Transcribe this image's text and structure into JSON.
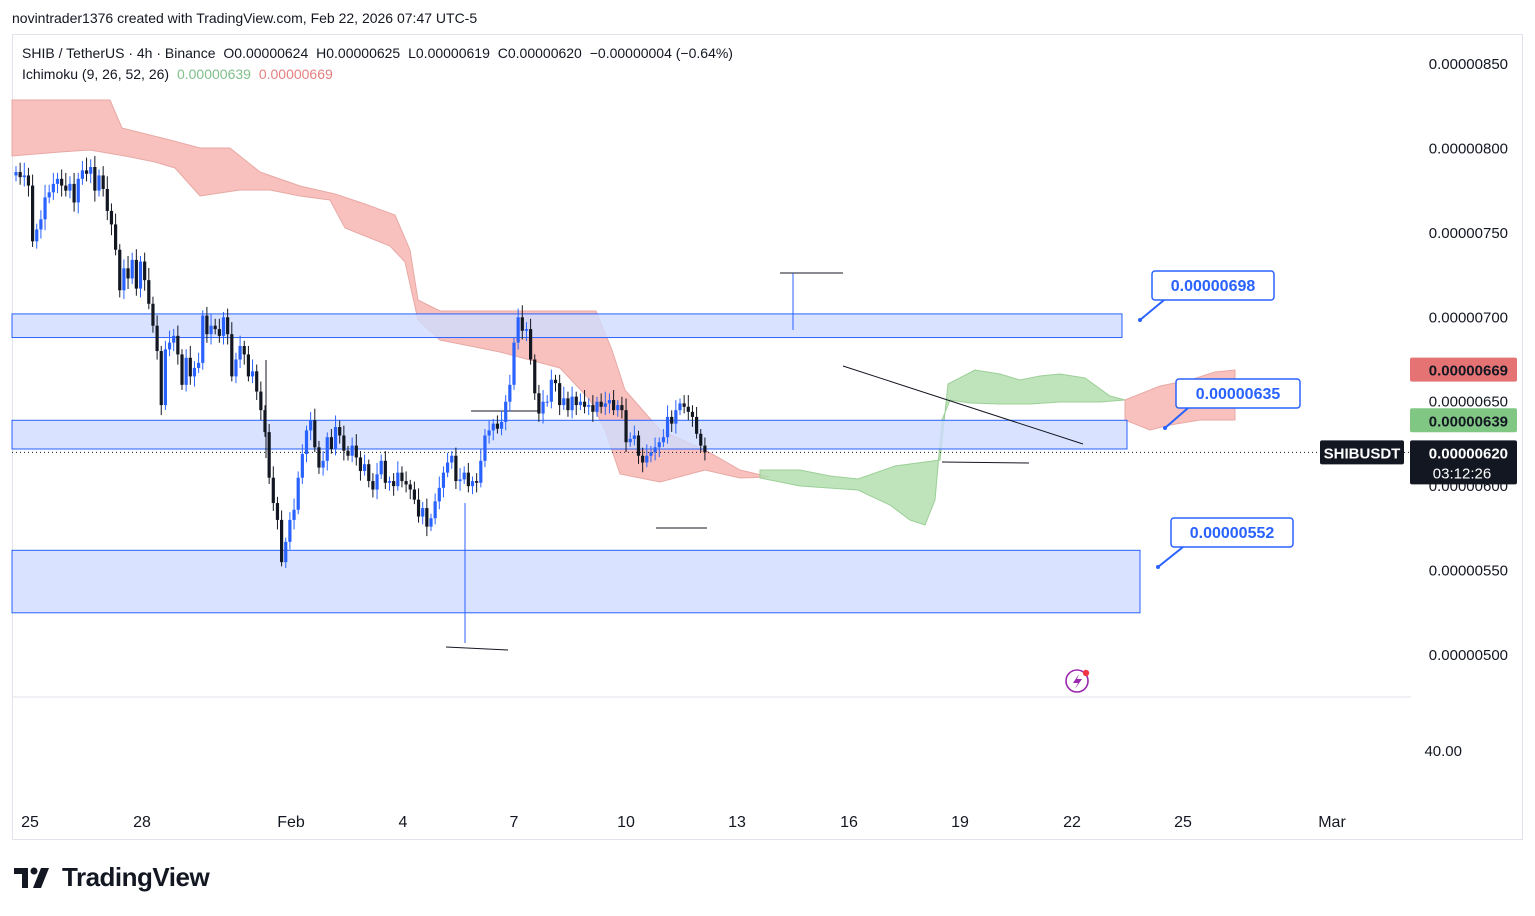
{
  "header": {
    "attribution": "novintrader1376 created with TradingView.com, Feb 22, 2026 07:47 UTC-5"
  },
  "legend": {
    "symbol": "SHIB / TetherUS · 4h · Binance",
    "open": "O0.00000624",
    "high": "H0.00000625",
    "low": "L0.00000619",
    "close": "C0.00000620",
    "change": "−0.00000004 (−0.64%)",
    "indicator": "Ichimoku (9, 26, 52, 26)",
    "ind_val1": "0.00000639",
    "ind_val2": "0.00000669"
  },
  "colors": {
    "up": "#2962ff",
    "down": "#131722",
    "zone_fill": "#cfdcff",
    "zone_border": "#2962ff",
    "cloud_bear": "#f7b6b2",
    "cloud_bull": "#b4dfb0",
    "label_red": "#e57373",
    "label_green": "#81c784",
    "label_black": "#131722"
  },
  "chart_data": {
    "type": "candlestick",
    "title": "SHIB / TetherUS · 4h · Binance",
    "y_axis": {
      "ticks": [
        "0.00000850",
        "0.00000800",
        "0.00000750",
        "0.00000700",
        "0.00000650",
        "0.00000600",
        "0.00000550",
        "0.00000500"
      ],
      "range": [
        4.7e-06,
        8.8e-06
      ]
    },
    "x_axis": {
      "ticks": [
        "25",
        "28",
        "Feb",
        "4",
        "7",
        "10",
        "13",
        "16",
        "19",
        "22",
        "25",
        "Mar"
      ]
    },
    "lower_pane": {
      "tick": "40.00"
    },
    "zones": [
      {
        "low": 6.88e-06,
        "high": 7.02e-06,
        "label": "0.00000698"
      },
      {
        "low": 6.22e-06,
        "high": 6.39e-06,
        "label": "0.00000635"
      },
      {
        "low": 5.25e-06,
        "high": 5.62e-06,
        "label": "0.00000552"
      }
    ],
    "price_labels": [
      {
        "value": 6.69e-06,
        "text": "0.00000669",
        "color": "red"
      },
      {
        "value": 6.39e-06,
        "text": "0.00000639",
        "color": "green"
      },
      {
        "value": 6.2e-06,
        "text": "0.00000620",
        "symbol": "SHIBUSDT",
        "countdown": "03:12:26",
        "color": "black"
      }
    ],
    "closes": [
      7.86e-06,
      7.83e-06,
      7.84e-06,
      7.78e-06,
      7.45e-06,
      7.52e-06,
      7.58e-06,
      7.71e-06,
      7.74e-06,
      7.79e-06,
      7.82e-06,
      7.78e-06,
      7.75e-06,
      7.79e-06,
      7.68e-06,
      7.82e-06,
      7.87e-06,
      7.85e-06,
      7.89e-06,
      7.75e-06,
      7.84e-06,
      7.76e-06,
      7.63e-06,
      7.55e-06,
      7.4e-06,
      7.16e-06,
      7.29e-06,
      7.23e-06,
      7.34e-06,
      7.17e-06,
      7.33e-06,
      7.22e-06,
      7.08e-06,
      6.95e-06,
      6.8e-06,
      6.48e-06,
      6.81e-06,
      6.85e-06,
      6.89e-06,
      6.78e-06,
      6.6e-06,
      6.76e-06,
      6.65e-06,
      6.7e-06,
      6.73e-06,
      7.01e-06,
      6.9e-06,
      6.95e-06,
      6.93e-06,
      6.89e-06,
      7e-06,
      6.9e-06,
      6.65e-06,
      6.75e-06,
      6.83e-06,
      6.78e-06,
      6.65e-06,
      6.68e-06,
      6.56e-06,
      6.45e-06,
      6.32e-06,
      6.05e-06,
      5.9e-06,
      5.8e-06,
      5.55e-06,
      5.67e-06,
      5.8e-06,
      5.86e-06,
      6.05e-06,
      6.19e-06,
      6.33e-06,
      6.39e-06,
      6.23e-06,
      6.11e-06,
      6.15e-06,
      6.29e-06,
      6.22e-06,
      6.35e-06,
      6.3e-06,
      6.21e-06,
      6.18e-06,
      6.24e-06,
      6.17e-06,
      6.09e-06,
      6.13e-06,
      6.03e-06,
      5.98e-06,
      6.07e-06,
      6.15e-06,
      6.02e-06,
      6.03e-06,
      6e-06,
      6.08e-06,
      6.03e-06,
      6.01e-06,
      5.98e-06,
      5.92e-06,
      5.82e-06,
      5.87e-06,
      5.76e-06,
      5.81e-06,
      5.91e-06,
      5.99e-06,
      6.08e-06,
      6.14e-06,
      6.18e-06,
      6.03e-06,
      6.04e-06,
      6.08e-06,
      6e-06,
      6.03e-06,
      6.02e-06,
      6.15e-06,
      6.3e-06,
      6.33e-06,
      6.37e-06,
      6.34e-06,
      6.38e-06,
      6.5e-06,
      6.6e-06,
      6.85e-06,
      7e-06,
      6.92e-06,
      6.93e-06,
      6.75e-06,
      6.55e-06,
      6.43e-06,
      6.5e-06,
      6.5e-06,
      6.63e-06,
      6.61e-06,
      6.48e-06,
      6.52e-06,
      6.45e-06,
      6.53e-06,
      6.48e-06,
      6.5e-06,
      6.47e-06,
      6.48e-06,
      6.44e-06,
      6.5e-06,
      6.47e-06,
      6.49e-06,
      6.51e-06,
      6.45e-06,
      6.48e-06,
      6.45e-06,
      6.26e-06,
      6.28e-06,
      6.3e-06,
      6.18e-06,
      6.14e-06,
      6.18e-06,
      6.2e-06,
      6.23e-06,
      6.26e-06,
      6.29e-06,
      6.41e-06,
      6.37e-06,
      6.45e-06,
      6.49e-06,
      6.47e-06,
      6.44e-06,
      6.41e-06,
      6.31e-06,
      6.24e-06,
      6.2e-06
    ]
  }
}
